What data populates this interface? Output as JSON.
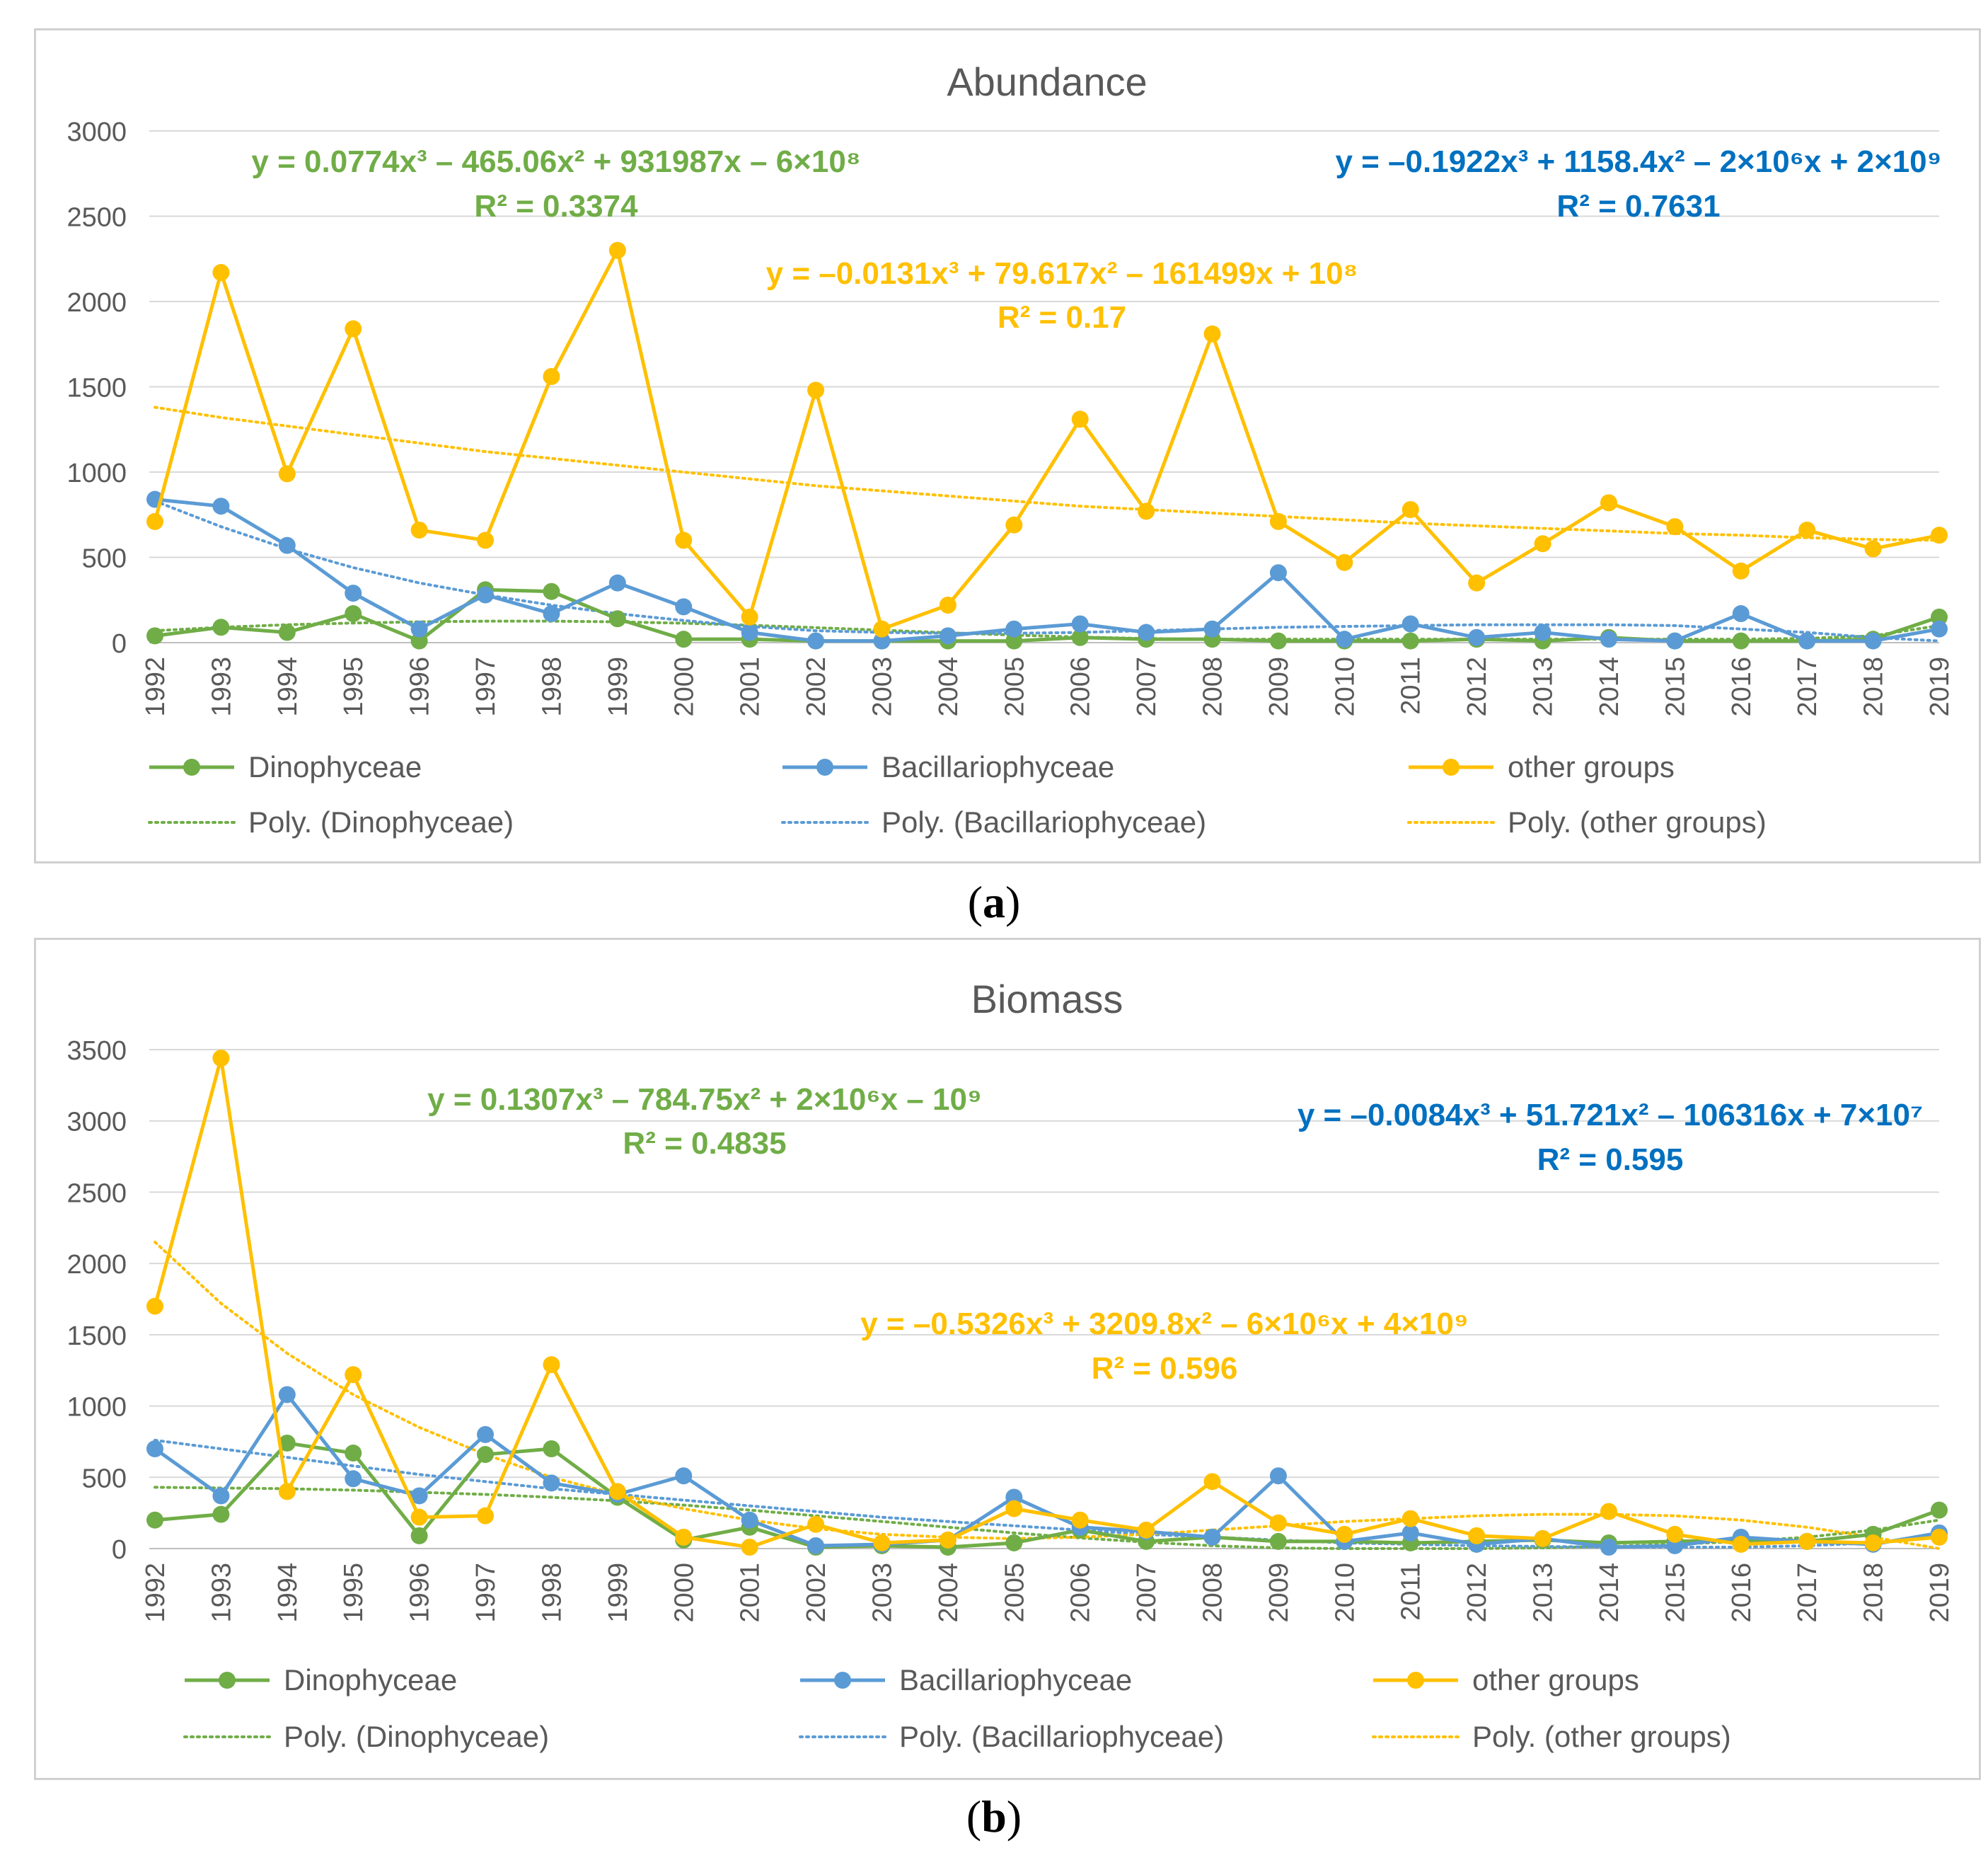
{
  "captions": {
    "a": "a",
    "b": "b"
  },
  "colors": {
    "dino": "#70AD47",
    "bac": "#5B9BD5",
    "other": "#FFC000",
    "grid": "#d9d9d9",
    "axis_text": "#595959",
    "bac_eq": "#0070C0"
  },
  "legend": {
    "dino": "Dinophyceae",
    "bac": "Bacillariophyceae",
    "other": "other groups",
    "poly_dino": "Poly. (Dinophyceae)",
    "poly_bac": "Poly. (Bacillariophyceae)",
    "poly_other": "Poly. (other groups)"
  },
  "chart_data": [
    {
      "type": "line",
      "title": "Abundance",
      "x": [
        1992,
        1993,
        1994,
        1995,
        1996,
        1997,
        1998,
        1999,
        2000,
        2001,
        2002,
        2003,
        2004,
        2005,
        2006,
        2007,
        2008,
        2009,
        2010,
        2011,
        2012,
        2013,
        2014,
        2015,
        2016,
        2017,
        2018,
        2019
      ],
      "ylim": [
        0,
        3000
      ],
      "yticks": [
        0,
        500,
        1000,
        1500,
        2000,
        2500,
        3000
      ],
      "series": [
        {
          "name": "Dinophyceae",
          "values": [
            40,
            90,
            60,
            170,
            10,
            310,
            300,
            140,
            20,
            20,
            10,
            10,
            10,
            10,
            30,
            20,
            20,
            10,
            10,
            10,
            20,
            10,
            30,
            10,
            10,
            10,
            20,
            150
          ]
        },
        {
          "name": "Bacillariophyceae",
          "values": [
            840,
            800,
            570,
            290,
            80,
            280,
            170,
            350,
            210,
            60,
            10,
            10,
            40,
            80,
            110,
            60,
            80,
            410,
            20,
            110,
            30,
            60,
            20,
            10,
            170,
            10,
            10,
            80
          ]
        },
        {
          "name": "other groups",
          "values": [
            710,
            2170,
            990,
            1840,
            660,
            600,
            1560,
            2300,
            600,
            150,
            1480,
            80,
            220,
            690,
            1310,
            770,
            1810,
            710,
            470,
            780,
            350,
            580,
            820,
            680,
            420,
            660,
            550,
            630
          ]
        }
      ],
      "trendlines": [
        {
          "name": "Poly. (Dinophyceae)",
          "values": [
            70,
            90,
            105,
            115,
            122,
            126,
            126,
            122,
            114,
            102,
            88,
            73,
            58,
            44,
            33,
            24,
            20,
            20,
            20,
            20,
            20,
            20,
            20,
            20,
            20,
            25,
            40,
            100
          ]
        },
        {
          "name": "Poly. (Bacillariophyceae)",
          "values": [
            830,
            680,
            550,
            440,
            350,
            280,
            220,
            170,
            130,
            95,
            70,
            60,
            55,
            55,
            60,
            70,
            80,
            90,
            95,
            100,
            105,
            105,
            105,
            100,
            80,
            60,
            30,
            10
          ]
        },
        {
          "name": "Poly. (other groups)",
          "values": [
            1380,
            1320,
            1270,
            1220,
            1170,
            1120,
            1080,
            1040,
            1000,
            960,
            920,
            890,
            860,
            830,
            800,
            780,
            760,
            740,
            720,
            700,
            685,
            670,
            655,
            640,
            630,
            615,
            605,
            600
          ]
        }
      ],
      "annotations": [
        {
          "series": "Dinophyceae",
          "equation": "y = 0.0774x³ – 465.06x² + 931987x – 6×10⁸",
          "r2": "R² = 0.3374"
        },
        {
          "series": "Bacillariophyceae",
          "equation": "y = –0.1922x³ + 1158.4x² – 2×10⁶x + 2×10⁹",
          "r2": "R² = 0.7631"
        },
        {
          "series": "other groups",
          "equation": "y = –0.0131x³ + 79.617x² – 161499x + 10⁸",
          "r2": "R² = 0.17"
        }
      ]
    },
    {
      "type": "line",
      "title": "Biomass",
      "x": [
        1992,
        1993,
        1994,
        1995,
        1996,
        1997,
        1998,
        1999,
        2000,
        2001,
        2002,
        2003,
        2004,
        2005,
        2006,
        2007,
        2008,
        2009,
        2010,
        2011,
        2012,
        2013,
        2014,
        2015,
        2016,
        2017,
        2018,
        2019
      ],
      "ylim": [
        0,
        3500
      ],
      "yticks": [
        0,
        500,
        1000,
        1500,
        2000,
        2500,
        3000,
        3500
      ],
      "series": [
        {
          "name": "Dinophyceae",
          "values": [
            200,
            240,
            740,
            670,
            90,
            660,
            700,
            360,
            60,
            150,
            10,
            20,
            10,
            40,
            130,
            50,
            80,
            50,
            50,
            40,
            50,
            60,
            40,
            50,
            60,
            50,
            100,
            270
          ]
        },
        {
          "name": "Bacillariophyceae",
          "values": [
            700,
            370,
            1080,
            490,
            370,
            800,
            460,
            380,
            510,
            200,
            20,
            30,
            60,
            360,
            150,
            120,
            80,
            510,
            50,
            110,
            30,
            70,
            10,
            20,
            80,
            50,
            30,
            110
          ]
        },
        {
          "name": "other groups",
          "values": [
            1700,
            3440,
            400,
            1220,
            220,
            230,
            1290,
            400,
            80,
            10,
            170,
            40,
            60,
            280,
            200,
            130,
            470,
            180,
            100,
            210,
            90,
            70,
            260,
            100,
            30,
            50,
            40,
            80
          ]
        }
      ],
      "trendlines": [
        {
          "name": "Poly. (Dinophyceae)",
          "values": [
            430,
            425,
            420,
            410,
            395,
            380,
            360,
            335,
            305,
            270,
            230,
            190,
            150,
            110,
            75,
            45,
            20,
            5,
            0,
            0,
            0,
            5,
            15,
            30,
            50,
            80,
            130,
            200
          ]
        },
        {
          "name": "Poly. (Bacillariophyceae)",
          "values": [
            760,
            700,
            640,
            580,
            520,
            470,
            420,
            380,
            340,
            300,
            260,
            220,
            190,
            160,
            130,
            100,
            80,
            60,
            40,
            30,
            20,
            15,
            10,
            10,
            10,
            20,
            40,
            80
          ]
        },
        {
          "name": "Poly. (other groups)",
          "values": [
            2150,
            1720,
            1370,
            1080,
            850,
            660,
            500,
            380,
            280,
            200,
            140,
            100,
            80,
            70,
            80,
            100,
            130,
            160,
            190,
            210,
            230,
            240,
            240,
            230,
            200,
            150,
            80,
            0
          ]
        }
      ],
      "annotations": [
        {
          "series": "Dinophyceae",
          "equation": "y = 0.1307x³ – 784.75x² + 2×10⁶x – 10⁹",
          "r2": "R² = 0.4835"
        },
        {
          "series": "Bacillariophyceae",
          "equation": "y = –0.0084x³ + 51.721x² – 106316x + 7×10⁷",
          "r2": "R² = 0.595"
        },
        {
          "series": "other groups",
          "equation": "y = –0.5326x³ + 3209.8x² – 6×10⁶x + 4×10⁹",
          "r2": "R² = 0.596"
        }
      ]
    }
  ]
}
